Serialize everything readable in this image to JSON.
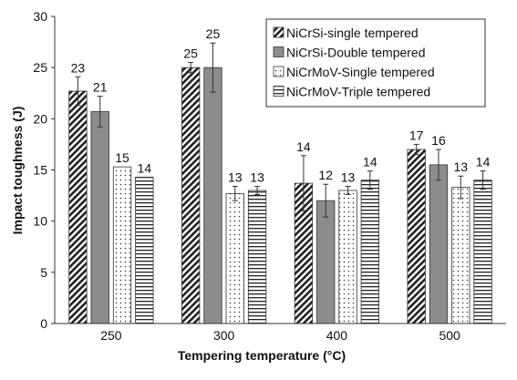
{
  "chart_data": {
    "type": "bar",
    "xlabel": "Tempering temperature (°C)",
    "ylabel": "Impact toughness (J)",
    "categories": [
      "250",
      "300",
      "400",
      "500"
    ],
    "ylim": [
      0,
      30
    ],
    "yticks": [
      "0",
      "5",
      "10",
      "15",
      "20",
      "25",
      "30"
    ],
    "grid": false,
    "legend_position": "top-right",
    "series": [
      {
        "name": "NiCrSi-single tempered",
        "pattern": "diagonal-hatch",
        "values": [
          22.7,
          25.0,
          13.7,
          17.0
        ],
        "errors": [
          1.4,
          0.5,
          2.7,
          0.5
        ],
        "labels": [
          "23",
          "25",
          "14",
          "17"
        ]
      },
      {
        "name": "NiCrSi-Double tempered",
        "pattern": "solid-gray",
        "values": [
          20.7,
          25.0,
          12.0,
          15.5
        ],
        "errors": [
          1.5,
          2.4,
          1.6,
          1.5
        ],
        "labels": [
          "21",
          "25",
          "12",
          "16"
        ]
      },
      {
        "name": "NiCrMoV-Single tempered",
        "pattern": "dots",
        "values": [
          15.3,
          12.7,
          13.0,
          13.3
        ],
        "errors": [
          0.0,
          0.7,
          0.4,
          1.1
        ],
        "labels": [
          "15",
          "13",
          "13",
          "13"
        ]
      },
      {
        "name": "NiCrMoV-Triple tempered",
        "pattern": "horizontal-lines",
        "values": [
          14.3,
          13.0,
          14.0,
          14.0
        ],
        "errors": [
          0.0,
          0.4,
          0.9,
          0.9
        ],
        "labels": [
          "14",
          "13",
          "14",
          "14"
        ]
      }
    ]
  }
}
